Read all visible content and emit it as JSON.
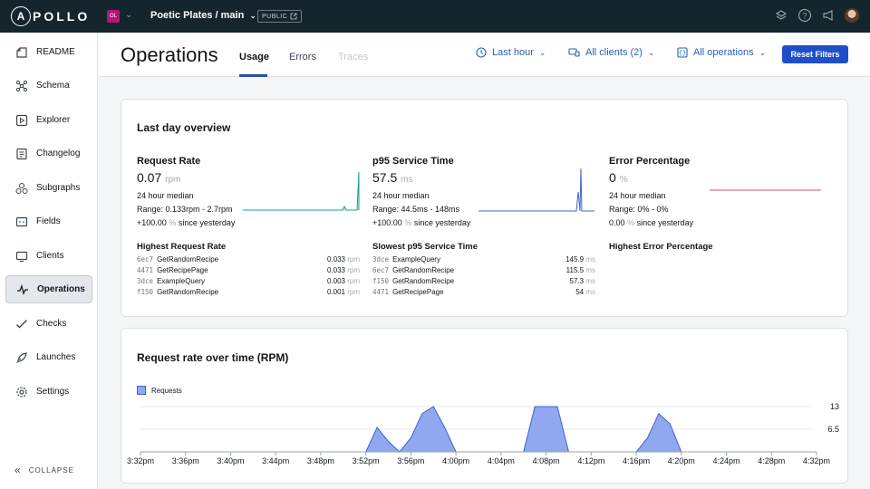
{
  "topbar": {
    "logo_glyph": "A",
    "logo_text": "POLLO",
    "org_badge": "OL",
    "graph_name": "Poetic Plates / main",
    "public_label": "PUBLIC",
    "icons": [
      "layers-icon",
      "help-icon",
      "megaphone-icon",
      "avatar"
    ]
  },
  "sidebar": {
    "items": [
      {
        "label": "README",
        "icon": "readme-icon"
      },
      {
        "label": "Schema",
        "icon": "schema-icon"
      },
      {
        "label": "Explorer",
        "icon": "explorer-icon"
      },
      {
        "label": "Changelog",
        "icon": "changelog-icon"
      },
      {
        "label": "Subgraphs",
        "icon": "subgraphs-icon"
      },
      {
        "label": "Fields",
        "icon": "fields-icon"
      },
      {
        "label": "Clients",
        "icon": "clients-icon"
      },
      {
        "label": "Operations",
        "icon": "operations-icon",
        "active": true
      },
      {
        "label": "Checks",
        "icon": "checks-icon"
      },
      {
        "label": "Launches",
        "icon": "launches-icon"
      },
      {
        "label": "Settings",
        "icon": "settings-icon"
      }
    ],
    "collapse_label": "COLLAPSE"
  },
  "header": {
    "title": "Operations",
    "tabs": [
      {
        "label": "Usage",
        "active": true
      },
      {
        "label": "Errors"
      },
      {
        "label": "Traces",
        "disabled": true
      }
    ],
    "filters": {
      "time": "Last hour",
      "clients": "All clients (2)",
      "operations": "All operations"
    },
    "reset_label": "Reset Filters"
  },
  "overview": {
    "title": "Last day overview",
    "metrics": [
      {
        "title": "Request Rate",
        "value": "0.07",
        "unit": "rpm",
        "median": "24 hour median",
        "range": "Range: 0.133rpm - 2.7rpm",
        "change": "+100.00",
        "change_unit": "%",
        "change_suffix": "since yesterday"
      },
      {
        "title": "p95 Service Time",
        "value": "57.5",
        "unit": "ms",
        "median": "24 hour median",
        "range": "Range: 44.5ms - 148ms",
        "change": "+100.00",
        "change_unit": "%",
        "change_suffix": "since yesterday"
      },
      {
        "title": "Error Percentage",
        "value": "0",
        "unit": "%",
        "median": "24 hour median",
        "range": "Range: 0% - 0%",
        "change": "0.00",
        "change_unit": "%",
        "change_suffix": "since yesterday"
      }
    ],
    "lists": [
      {
        "title": "Highest Request Rate",
        "rows": [
          {
            "hash": "6ec7",
            "name": "GetRandomRecipe",
            "value": "0.033",
            "unit": "rpm"
          },
          {
            "hash": "4471",
            "name": "GetRecipePage",
            "value": "0.033",
            "unit": "rpm"
          },
          {
            "hash": "3dce",
            "name": "ExampleQuery",
            "value": "0.003",
            "unit": "rpm"
          },
          {
            "hash": "f150",
            "name": "GetRandomRecipe",
            "value": "0.001",
            "unit": "rpm"
          }
        ]
      },
      {
        "title": "Slowest p95 Service Time",
        "rows": [
          {
            "hash": "3dce",
            "name": "ExampleQuery",
            "value": "145.9",
            "unit": "ms"
          },
          {
            "hash": "6ec7",
            "name": "GetRandomRecipe",
            "value": "115.5",
            "unit": "ms"
          },
          {
            "hash": "f150",
            "name": "GetRandomRecipe",
            "value": "57.3",
            "unit": "ms"
          },
          {
            "hash": "4471",
            "name": "GetRecipePage",
            "value": "54",
            "unit": "ms"
          }
        ]
      },
      {
        "title": "Highest Error Percentage",
        "rows": []
      }
    ]
  },
  "chart_data": {
    "type": "area",
    "title": "Request rate over time (RPM)",
    "legend": [
      "Requests"
    ],
    "legend_position": "top-left",
    "colors": {
      "fill": "#8fa8f0",
      "stroke": "#3f63d0"
    },
    "x_ticks": [
      "3:32pm",
      "3:36pm",
      "3:40pm",
      "3:44pm",
      "3:48pm",
      "3:52pm",
      "3:56pm",
      "4:00pm",
      "4:04pm",
      "4:08pm",
      "4:12pm",
      "4:16pm",
      "4:20pm",
      "4:24pm",
      "4:28pm",
      "4:32pm"
    ],
    "y_ticks": [
      "13",
      "6.5"
    ],
    "ylim": [
      0,
      13
    ],
    "series": [
      {
        "name": "Requests",
        "x": [
          "3:32pm",
          "3:52pm",
          "3:53pm",
          "3:54pm",
          "3:55pm",
          "3:56pm",
          "3:57pm",
          "3:58pm",
          "3:59pm",
          "4:00pm",
          "4:01pm",
          "4:06pm",
          "4:07pm",
          "4:08pm",
          "4:09pm",
          "4:10pm",
          "4:11pm",
          "4:16pm",
          "4:17pm",
          "4:18pm",
          "4:19pm",
          "4:20pm",
          "4:32pm"
        ],
        "values": [
          0,
          0,
          7,
          3,
          0,
          4,
          11,
          13,
          7,
          0,
          0,
          0,
          13,
          13,
          13,
          0,
          0,
          0,
          4,
          11,
          8,
          0,
          0
        ]
      }
    ]
  }
}
